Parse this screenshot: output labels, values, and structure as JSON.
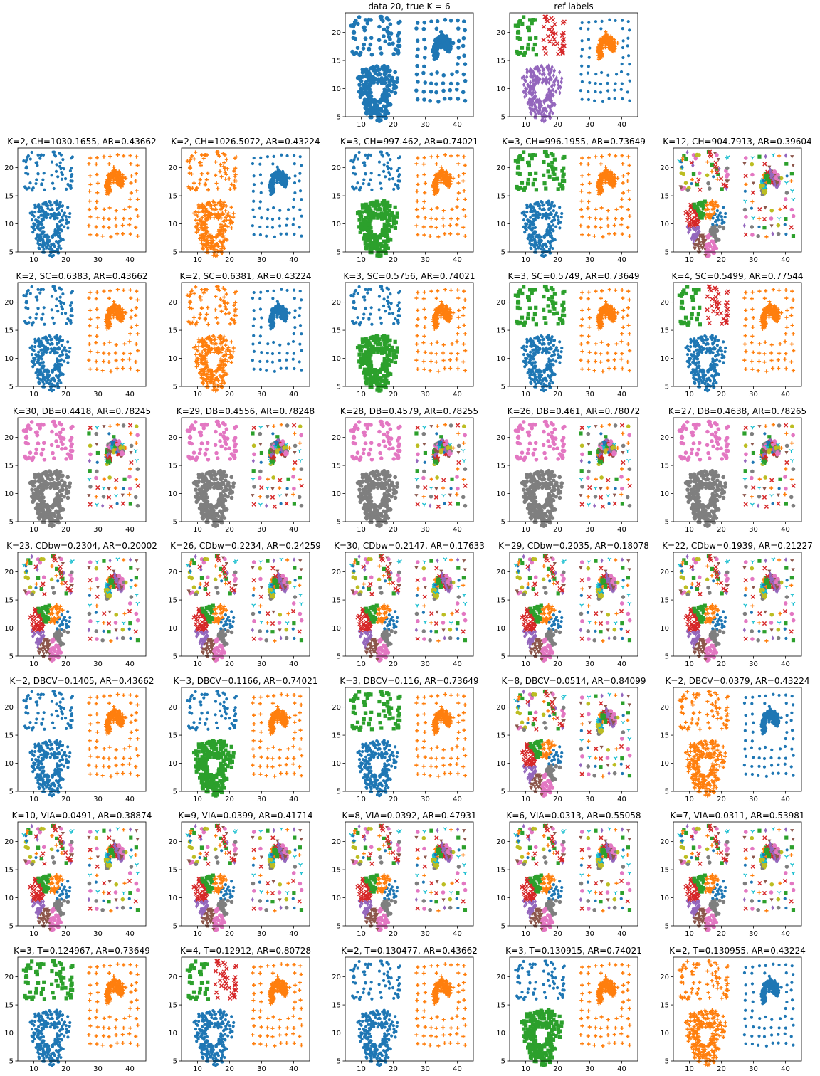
{
  "figure": {
    "palette": [
      "#1f77b4",
      "#ff7f0e",
      "#2ca02c",
      "#d62728",
      "#9467bd",
      "#8c564b",
      "#e377c2",
      "#7f7f7f",
      "#bcbd22",
      "#17becf"
    ],
    "markers": [
      "dot",
      "plus",
      "square",
      "x",
      "diamond",
      "triangle",
      "pentagon",
      "star",
      "circle",
      "tri_down"
    ],
    "axis": {
      "x_ticks": [
        10,
        20,
        30,
        40
      ],
      "y_ticks": [
        5,
        10,
        15,
        20
      ],
      "xlim": [
        5,
        45
      ],
      "ylim": [
        5,
        23.5
      ]
    }
  },
  "chart_data": [
    {
      "type": "scatter",
      "title": "data 20, true K = 6",
      "kind": "data"
    },
    {
      "type": "scatter",
      "title": "ref labels",
      "kind": "ref"
    },
    {
      "type": "scatter",
      "title": "K=2, CH=1030.1655, AR=0.43662",
      "k": 2,
      "metric": "CH",
      "score": 1030.1655,
      "ar": 0.43662
    },
    {
      "type": "scatter",
      "title": "K=2, CH=1026.5072, AR=0.43224",
      "k": 2,
      "metric": "CH",
      "score": 1026.5072,
      "ar": 0.43224
    },
    {
      "type": "scatter",
      "title": "K=3, CH=997.462, AR=0.74021",
      "k": 3,
      "metric": "CH",
      "score": 997.462,
      "ar": 0.74021
    },
    {
      "type": "scatter",
      "title": "K=3, CH=996.1955, AR=0.73649",
      "k": 3,
      "metric": "CH",
      "score": 996.1955,
      "ar": 0.73649
    },
    {
      "type": "scatter",
      "title": "K=12, CH=904.7913, AR=0.39604",
      "k": 12,
      "metric": "CH",
      "score": 904.7913,
      "ar": 0.39604
    },
    {
      "type": "scatter",
      "title": "K=2, SC=0.6383, AR=0.43662",
      "k": 2,
      "metric": "SC",
      "score": 0.6383,
      "ar": 0.43662
    },
    {
      "type": "scatter",
      "title": "K=2, SC=0.6381, AR=0.43224",
      "k": 2,
      "metric": "SC",
      "score": 0.6381,
      "ar": 0.43224
    },
    {
      "type": "scatter",
      "title": "K=3, SC=0.5756, AR=0.74021",
      "k": 3,
      "metric": "SC",
      "score": 0.5756,
      "ar": 0.74021
    },
    {
      "type": "scatter",
      "title": "K=3, SC=0.5749, AR=0.73649",
      "k": 3,
      "metric": "SC",
      "score": 0.5749,
      "ar": 0.73649
    },
    {
      "type": "scatter",
      "title": "K=4, SC=0.5499, AR=0.77544",
      "k": 4,
      "metric": "SC",
      "score": 0.5499,
      "ar": 0.77544
    },
    {
      "type": "scatter",
      "title": "K=30, DB=0.4418, AR=0.78245",
      "k": 30,
      "metric": "DB",
      "score": 0.4418,
      "ar": 0.78245
    },
    {
      "type": "scatter",
      "title": "K=29, DB=0.4556, AR=0.78248",
      "k": 29,
      "metric": "DB",
      "score": 0.4556,
      "ar": 0.78248
    },
    {
      "type": "scatter",
      "title": "K=28, DB=0.4579, AR=0.78255",
      "k": 28,
      "metric": "DB",
      "score": 0.4579,
      "ar": 0.78255
    },
    {
      "type": "scatter",
      "title": "K=26, DB=0.461, AR=0.78072",
      "k": 26,
      "metric": "DB",
      "score": 0.461,
      "ar": 0.78072
    },
    {
      "type": "scatter",
      "title": "K=27, DB=0.4638, AR=0.78265",
      "k": 27,
      "metric": "DB",
      "score": 0.4638,
      "ar": 0.78265
    },
    {
      "type": "scatter",
      "title": "K=23, CDbw=0.2304, AR=0.20002",
      "k": 23,
      "metric": "CDbw",
      "score": 0.2304,
      "ar": 0.20002
    },
    {
      "type": "scatter",
      "title": "K=26, CDbw=0.2234, AR=0.24259",
      "k": 26,
      "metric": "CDbw",
      "score": 0.2234,
      "ar": 0.24259
    },
    {
      "type": "scatter",
      "title": "K=30, CDbw=0.2147, AR=0.17633",
      "k": 30,
      "metric": "CDbw",
      "score": 0.2147,
      "ar": 0.17633
    },
    {
      "type": "scatter",
      "title": "K=29, CDbw=0.2035, AR=0.18078",
      "k": 29,
      "metric": "CDbw",
      "score": 0.2035,
      "ar": 0.18078
    },
    {
      "type": "scatter",
      "title": "K=22, CDbw=0.1939, AR=0.21227",
      "k": 22,
      "metric": "CDbw",
      "score": 0.1939,
      "ar": 0.21227
    },
    {
      "type": "scatter",
      "title": "K=2, DBCV=0.1405, AR=0.43662",
      "k": 2,
      "metric": "DBCV",
      "score": 0.1405,
      "ar": 0.43662
    },
    {
      "type": "scatter",
      "title": "K=3, DBCV=0.1166, AR=0.74021",
      "k": 3,
      "metric": "DBCV",
      "score": 0.1166,
      "ar": 0.74021
    },
    {
      "type": "scatter",
      "title": "K=3, DBCV=0.116, AR=0.73649",
      "k": 3,
      "metric": "DBCV",
      "score": 0.116,
      "ar": 0.73649
    },
    {
      "type": "scatter",
      "title": "K=8, DBCV=0.0514, AR=0.84099",
      "k": 8,
      "metric": "DBCV",
      "score": 0.0514,
      "ar": 0.84099
    },
    {
      "type": "scatter",
      "title": "K=2, DBCV=0.0379, AR=0.43224",
      "k": 2,
      "metric": "DBCV",
      "score": 0.0379,
      "ar": 0.43224
    },
    {
      "type": "scatter",
      "title": "K=10, VIA=0.0491, AR=0.38874",
      "k": 10,
      "metric": "VIA",
      "score": 0.0491,
      "ar": 0.38874
    },
    {
      "type": "scatter",
      "title": "K=9, VIA=0.0399, AR=0.41714",
      "k": 9,
      "metric": "VIA",
      "score": 0.0399,
      "ar": 0.41714
    },
    {
      "type": "scatter",
      "title": "K=8, VIA=0.0392, AR=0.47931",
      "k": 8,
      "metric": "VIA",
      "score": 0.0392,
      "ar": 0.47931
    },
    {
      "type": "scatter",
      "title": "K=6, VIA=0.0313, AR=0.55058",
      "k": 6,
      "metric": "VIA",
      "score": 0.0313,
      "ar": 0.55058
    },
    {
      "type": "scatter",
      "title": "K=7, VIA=0.0311, AR=0.53981",
      "k": 7,
      "metric": "VIA",
      "score": 0.0311,
      "ar": 0.53981
    },
    {
      "type": "scatter",
      "title": "K=3, T=0.124967, AR=0.73649",
      "k": 3,
      "metric": "T",
      "score": 0.124967,
      "ar": 0.73649
    },
    {
      "type": "scatter",
      "title": "K=4, T=0.12912, AR=0.80728",
      "k": 4,
      "metric": "T",
      "score": 0.12912,
      "ar": 0.80728
    },
    {
      "type": "scatter",
      "title": "K=2, T=0.130477, AR=0.43662",
      "k": 2,
      "metric": "T",
      "score": 0.130477,
      "ar": 0.43662
    },
    {
      "type": "scatter",
      "title": "K=3, T=0.130915, AR=0.74021",
      "k": 3,
      "metric": "T",
      "score": 0.130915,
      "ar": 0.74021
    },
    {
      "type": "scatter",
      "title": "K=2, T=0.130955, AR=0.43224",
      "k": 2,
      "metric": "T",
      "score": 0.130955,
      "ar": 0.43224
    }
  ]
}
